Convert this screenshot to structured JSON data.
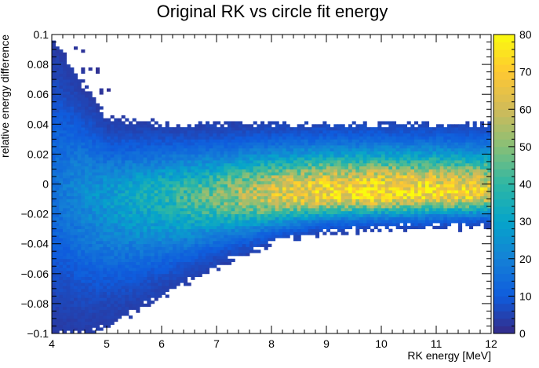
{
  "chart_data": {
    "type": "heatmap",
    "title": "Original RK vs circle fit energy",
    "xlabel": "RK energy [MeV]",
    "ylabel": "relative energy difference",
    "xlim": [
      4,
      12
    ],
    "ylim": [
      -0.1,
      0.1
    ],
    "x_ticks": [
      "4",
      "5",
      "6",
      "7",
      "8",
      "9",
      "10",
      "11",
      "12"
    ],
    "y_ticks": [
      "−0.1",
      "−0.08",
      "−0.06",
      "−0.04",
      "−0.02",
      "0",
      "0.02",
      "0.04",
      "0.06",
      "0.08",
      "0.1"
    ],
    "colorbar": {
      "range": [
        0,
        80
      ],
      "ticks": [
        "0",
        "10",
        "20",
        "30",
        "40",
        "50",
        "60",
        "70",
        "80"
      ],
      "palette": [
        "#352a87",
        "#0f5cdd",
        "#1481d6",
        "#06a4ca",
        "#2eb7a4",
        "#87bf77",
        "#d1bb59",
        "#fec832",
        "#f9fb0e"
      ]
    },
    "bins": {
      "x_bins": 120,
      "y_bins": 100
    },
    "band_profile": [
      {
        "x": 4.0,
        "y_low": -0.1,
        "y_high": 0.1,
        "y_center": 0.0,
        "peak_count": 8
      },
      {
        "x": 4.5,
        "y_low": -0.1,
        "y_high": 0.07,
        "y_center": -0.005,
        "peak_count": 15
      },
      {
        "x": 5.0,
        "y_low": -0.095,
        "y_high": 0.045,
        "y_center": -0.008,
        "peak_count": 20
      },
      {
        "x": 6.0,
        "y_low": -0.075,
        "y_high": 0.04,
        "y_center": -0.008,
        "peak_count": 30
      },
      {
        "x": 7.0,
        "y_low": -0.055,
        "y_high": 0.04,
        "y_center": -0.008,
        "peak_count": 40
      },
      {
        "x": 8.0,
        "y_low": -0.04,
        "y_high": 0.04,
        "y_center": -0.007,
        "peak_count": 55
      },
      {
        "x": 9.0,
        "y_low": -0.032,
        "y_high": 0.04,
        "y_center": -0.006,
        "peak_count": 65
      },
      {
        "x": 10.0,
        "y_low": -0.03,
        "y_high": 0.04,
        "y_center": -0.006,
        "peak_count": 68
      },
      {
        "x": 11.0,
        "y_low": -0.029,
        "y_high": 0.04,
        "y_center": -0.006,
        "peak_count": 65
      },
      {
        "x": 12.0,
        "y_low": -0.028,
        "y_high": 0.04,
        "y_center": -0.006,
        "peak_count": 60
      }
    ],
    "grid": false,
    "legend": "none"
  }
}
